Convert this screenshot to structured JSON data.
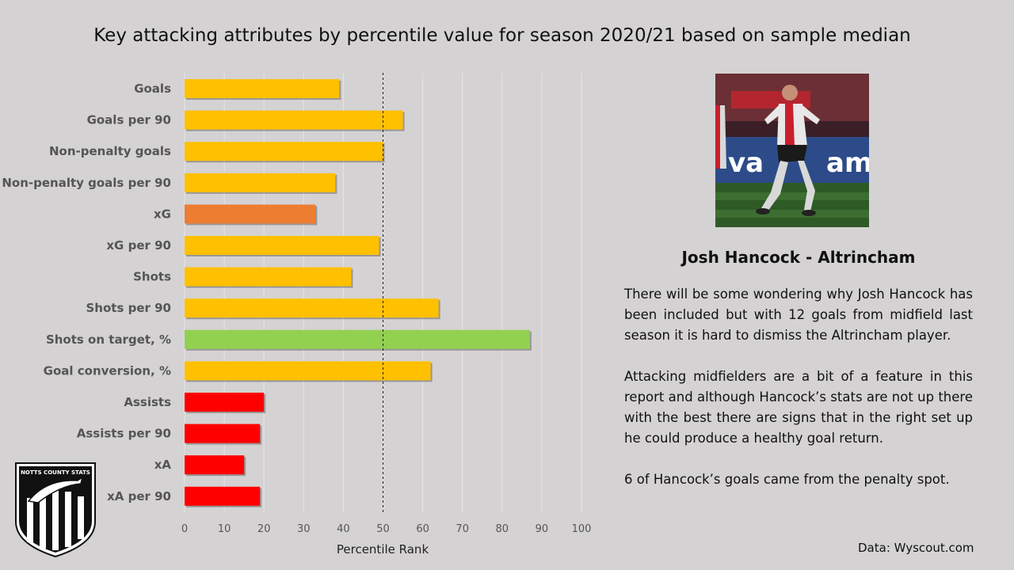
{
  "chart_data": {
    "type": "bar",
    "orientation": "horizontal",
    "title": "Key attacking attributes by percentile value for season 2020/21 based on sample median",
    "xlabel": "Percentile Rank",
    "ylabel": "",
    "xlim": [
      0,
      100
    ],
    "ticks": [
      0,
      10,
      20,
      30,
      40,
      50,
      60,
      70,
      80,
      90,
      100
    ],
    "reference_line": 50,
    "grid": "vertical",
    "categories": [
      "Goals",
      "Goals per 90",
      "Non-penalty goals",
      "Non-penalty goals per 90",
      "xG",
      "xG per 90",
      "Shots",
      "Shots per 90",
      "Shots on target, %",
      "Goal conversion, %",
      "Assists",
      "Assists per 90",
      "xA",
      "xA per 90"
    ],
    "values": [
      39,
      55,
      50,
      38,
      33,
      49,
      42,
      64,
      87,
      62,
      20,
      19,
      15,
      19
    ],
    "colors": [
      "#ffc000",
      "#ffc000",
      "#ffc000",
      "#ffc000",
      "#ed7d31",
      "#ffc000",
      "#ffc000",
      "#ffc000",
      "#92d050",
      "#ffc000",
      "#ff0000",
      "#ff0000",
      "#ff0000",
      "#ff0000"
    ]
  },
  "player": {
    "name": "Josh Hancock - Altrincham",
    "paragraphs": [
      "There will be some wondering why Josh Hancock has been included but with 12 goals from midfield last season it is hard to dismiss the Altrincham player.",
      "Attacking midfielders are a bit of a feature in this report and although Hancock’s stats are not up there with the best there are signs that in the right set up he could produce a healthy goal return.",
      "6 of Hancock’s goals came from the penalty spot."
    ],
    "photo_banner_text": "va",
    "photo_banner_text2": "ama"
  },
  "source": "Data: Wyscout.com",
  "logo": {
    "text": "NOTTS COUNTY STATS"
  }
}
